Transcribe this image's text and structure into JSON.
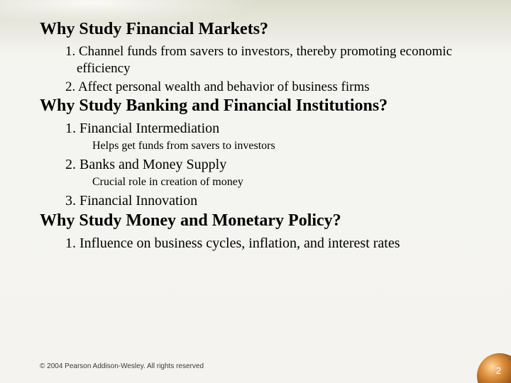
{
  "background": {
    "gradient_top": "#dcdccc",
    "gradient_bottom": "#f4f3ef"
  },
  "headings": {
    "h1": "Why Study Financial Markets?",
    "h2": "Why Study Banking and Financial Institutions?",
    "h3": "Why Study Money and Monetary Policy?"
  },
  "section1": {
    "item1": "1. Channel funds from savers to investors, thereby promoting economic efficiency",
    "item2": "2. Affect personal wealth and behavior of business firms"
  },
  "section2": {
    "item1": "1. Financial Intermediation",
    "item1_sub": "Helps get funds from savers to investors",
    "item2": "2. Banks and Money Supply",
    "item2_sub": "Crucial role in creation of money",
    "item3": "3. Financial Innovation"
  },
  "section3": {
    "item1": "1. Influence on business cycles, inflation, and interest rates"
  },
  "footer": {
    "copyright": "© 2004 Pearson Addison-Wesley. All rights reserved",
    "page_number": "2"
  },
  "typography": {
    "heading_font": "Times New Roman",
    "body_font": "Times New Roman",
    "footer_font": "Arial",
    "heading_lg_size_pt": 24,
    "heading_md_size_pt": 22,
    "lvl1_size_pt": 19,
    "lvl2_size_pt": 16,
    "footer_size_pt": 10
  },
  "colors": {
    "text": "#000000",
    "footer_text": "#3a3a3a",
    "page_number": "#ffffff",
    "orb_highlight": "#ffd9a0",
    "orb_mid": "#dd8f3a",
    "orb_dark": "#4b240a"
  }
}
